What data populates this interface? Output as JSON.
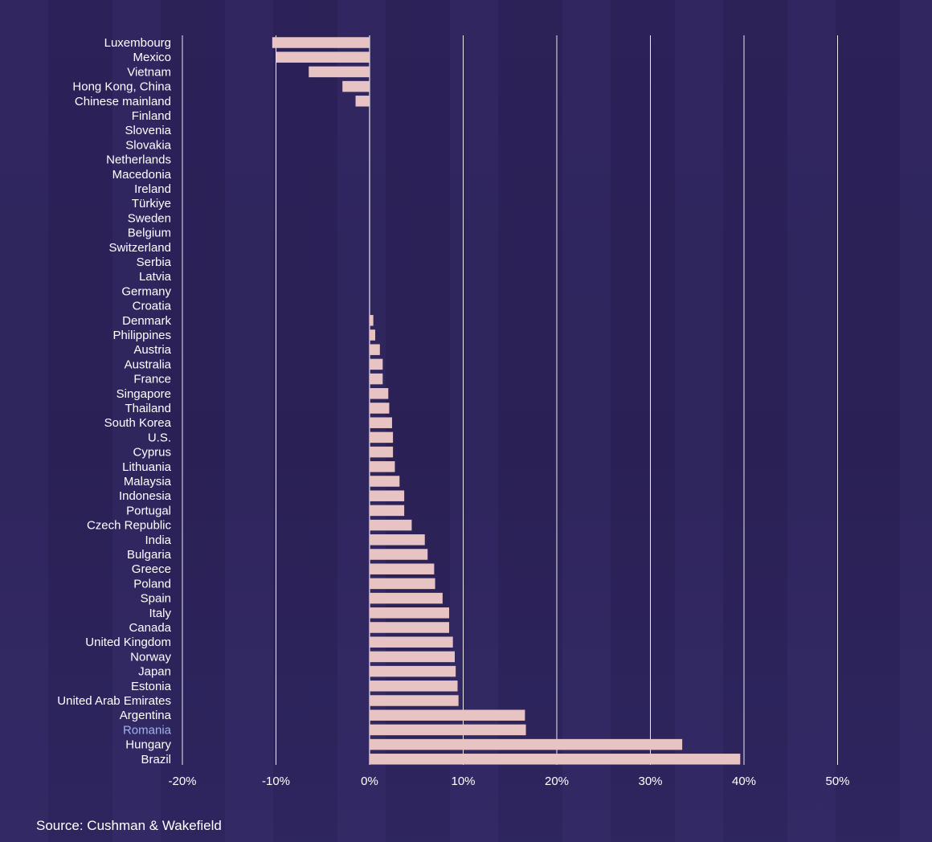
{
  "chart_data": {
    "type": "bar",
    "orientation": "horizontal",
    "categories": [
      "Luxembourg",
      "Mexico",
      "Vietnam",
      "Hong Kong, China",
      "Chinese mainland",
      "Finland",
      "Slovenia",
      "Slovakia",
      "Netherlands",
      "Macedonia",
      "Ireland",
      "Türkiye",
      "Sweden",
      "Belgium",
      "Switzerland",
      "Serbia",
      "Latvia",
      "Germany",
      "Croatia",
      "Denmark",
      "Philippines",
      "Austria",
      "Australia",
      "France",
      "Singapore",
      "Thailand",
      "South Korea",
      "U.S.",
      "Cyprus",
      "Lithuania",
      "Malaysia",
      "Indonesia",
      "Portugal",
      "Czech Republic",
      "India",
      "Bulgaria",
      "Greece",
      "Poland",
      "Spain",
      "Italy",
      "Canada",
      "United Kingdom",
      "Norway",
      "Japan",
      "Estonia",
      "United Arab Emirates",
      "Argentina",
      "Romania",
      "Hungary",
      "Brazil"
    ],
    "values": [
      -10.4,
      -10.0,
      -6.5,
      -2.9,
      -1.5,
      0,
      0,
      0,
      0,
      0,
      0,
      0,
      0,
      0,
      0,
      0,
      0,
      0,
      0,
      0.4,
      0.6,
      1.1,
      1.4,
      1.4,
      2.0,
      2.1,
      2.4,
      2.5,
      2.5,
      2.7,
      3.2,
      3.7,
      3.7,
      4.5,
      5.9,
      6.2,
      6.9,
      7.0,
      7.8,
      8.5,
      8.5,
      8.9,
      9.1,
      9.2,
      9.4,
      9.5,
      16.6,
      16.7,
      33.4,
      39.6
    ],
    "highlight": [
      "Romania"
    ],
    "xlim": [
      -20,
      50
    ],
    "xticks": [
      -20,
      -10,
      0,
      10,
      20,
      30,
      40,
      50
    ],
    "xtick_labels": [
      "-20%",
      "-10%",
      "0%",
      "10%",
      "20%",
      "30%",
      "40%",
      "50%"
    ],
    "gridlines": [
      -10,
      0,
      10,
      20,
      30,
      40,
      50
    ],
    "title": "",
    "xlabel": "",
    "ylabel": ""
  },
  "colors": {
    "bar": "#e7c3c3",
    "label": "#ffffff",
    "highlight_label": "#9fb4ee",
    "grid": "#ffffff"
  },
  "source": "Source: Cushman & Wakefield"
}
